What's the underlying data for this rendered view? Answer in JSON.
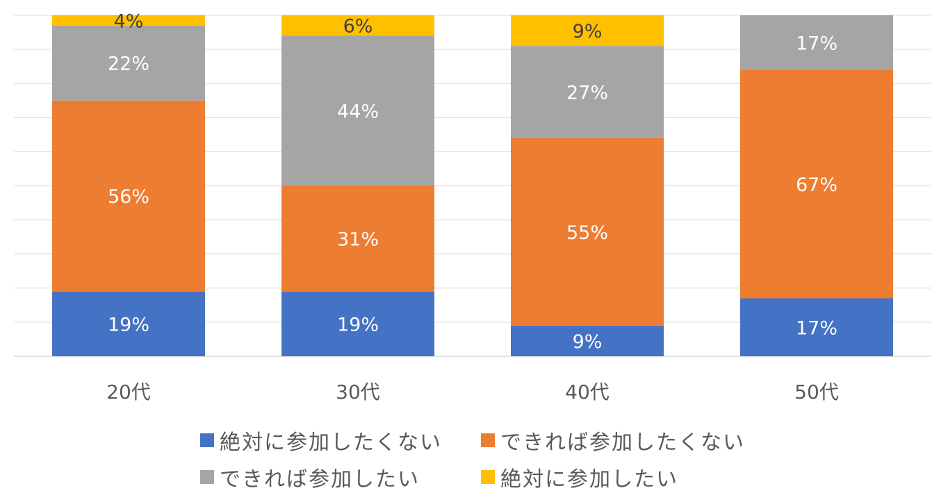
{
  "chart_data": {
    "type": "bar",
    "stacked": true,
    "percent": true,
    "categories": [
      "20代",
      "30代",
      "40代",
      "50代"
    ],
    "series": [
      {
        "name": "絶対に参加したくない",
        "color": "#4472C4",
        "values": [
          19,
          19,
          9,
          17
        ]
      },
      {
        "name": "できれば参加したくない",
        "color": "#ED7D31",
        "values": [
          56,
          31,
          55,
          67
        ]
      },
      {
        "name": "できれば参加したい",
        "color": "#A5A5A5",
        "values": [
          22,
          44,
          27,
          17
        ]
      },
      {
        "name": "絶対に参加したい",
        "color": "#FFC000",
        "values": [
          4,
          6,
          9,
          0
        ]
      }
    ],
    "value_suffix": "%",
    "ylim": [
      0,
      100
    ],
    "grid": true,
    "legend_position": "bottom"
  }
}
